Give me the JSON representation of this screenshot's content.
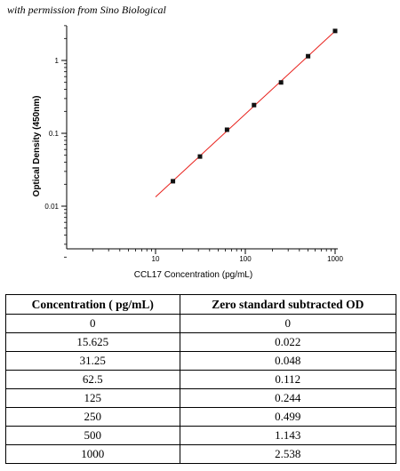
{
  "credit": "with permission from Sino Biological",
  "chart_data": {
    "type": "scatter",
    "xscale": "log",
    "yscale": "log",
    "xlabel": "CCL17 Concentration (pg/mL)",
    "ylabel": "Optical Density (450nm)",
    "xlim": [
      1,
      1000
    ],
    "ylim": [
      0.002,
      3
    ],
    "x_ticks": [
      {
        "value": 10,
        "label": "10"
      },
      {
        "value": 100,
        "label": "100"
      },
      {
        "value": 1000,
        "label": "1000"
      }
    ],
    "y_ticks": [
      {
        "value": 0.01,
        "label": "0.01"
      },
      {
        "value": 0.1,
        "label": "0.1"
      },
      {
        "value": 1,
        "label": "1"
      }
    ],
    "grid": false,
    "points": [
      {
        "x": 15.625,
        "y": 0.022
      },
      {
        "x": 31.25,
        "y": 0.048
      },
      {
        "x": 62.5,
        "y": 0.112
      },
      {
        "x": 125,
        "y": 0.244
      },
      {
        "x": 250,
        "y": 0.499
      },
      {
        "x": 500,
        "y": 1.143
      },
      {
        "x": 1000,
        "y": 2.538
      }
    ],
    "fit_line": {
      "x_start": 10,
      "x_end": 1000,
      "color": "#e8211c"
    },
    "marker_color": "#111111"
  },
  "table": {
    "headers": [
      "Concentration ( pg/mL)",
      "Zero standard subtracted OD"
    ],
    "rows": [
      [
        "0",
        "0"
      ],
      [
        "15.625",
        "0.022"
      ],
      [
        "31.25",
        "0.048"
      ],
      [
        "62.5",
        "0.112"
      ],
      [
        "125",
        "0.244"
      ],
      [
        "250",
        "0.499"
      ],
      [
        "500",
        "1.143"
      ],
      [
        "1000",
        "2.538"
      ]
    ]
  }
}
